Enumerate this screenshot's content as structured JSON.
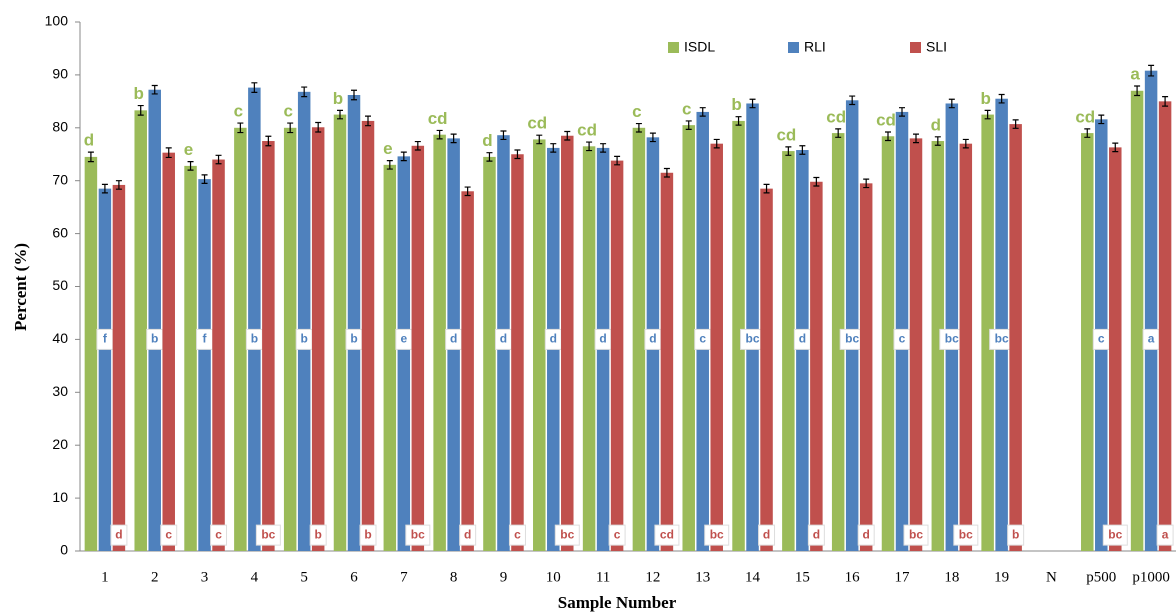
{
  "chart_data": {
    "type": "bar",
    "x_label": "Sample Number",
    "y_label": "Percent (%)",
    "categories": [
      "1",
      "2",
      "3",
      "4",
      "5",
      "6",
      "7",
      "8",
      "9",
      "10",
      "11",
      "12",
      "13",
      "14",
      "15",
      "16",
      "17",
      "18",
      "19",
      "N",
      "p500",
      "p1000"
    ],
    "ylim": [
      0,
      100
    ],
    "yticks": [
      0,
      10,
      20,
      30,
      40,
      50,
      60,
      70,
      80,
      90,
      100
    ],
    "grid": false,
    "legend": "top-right",
    "series": [
      {
        "name": "ISDL",
        "color": "#9bbb59",
        "values": [
          74.5,
          83.3,
          72.8,
          80,
          80,
          82.5,
          73,
          78.7,
          74.5,
          77.8,
          76.5,
          80,
          80.5,
          81.3,
          75.6,
          79,
          78.4,
          77.5,
          82.5,
          null,
          79,
          87
        ],
        "errors": [
          0.9,
          0.9,
          0.8,
          0.9,
          0.9,
          0.8,
          0.8,
          0.8,
          0.8,
          0.8,
          0.8,
          0.8,
          0.8,
          0.8,
          0.8,
          0.8,
          0.8,
          0.8,
          0.8,
          null,
          0.8,
          0.9
        ],
        "letters": [
          "d",
          "b",
          "e",
          "c",
          "c",
          "b",
          "e",
          "cd",
          "d",
          "cd",
          "cd",
          "c",
          "c",
          "b",
          "cd",
          "cd",
          "cd",
          "d",
          "b",
          null,
          "cd",
          "a"
        ]
      },
      {
        "name": "RLI",
        "color": "#4f81bd",
        "values": [
          68.5,
          87.2,
          70.3,
          87.6,
          86.8,
          86.2,
          74.6,
          78,
          78.6,
          76.2,
          76.2,
          78.2,
          83,
          84.6,
          75.8,
          85.2,
          83,
          84.6,
          85.5,
          null,
          81.6,
          90.8
        ],
        "errors": [
          0.8,
          0.8,
          0.8,
          0.9,
          0.9,
          0.9,
          0.8,
          0.8,
          0.8,
          0.8,
          0.8,
          0.8,
          0.8,
          0.8,
          0.8,
          0.8,
          0.8,
          0.8,
          0.8,
          null,
          0.8,
          1
        ],
        "letters": [
          "f",
          "b",
          "f",
          "b",
          "b",
          "b",
          "e",
          "d",
          "d",
          "d",
          "d",
          "d",
          "c",
          "bc",
          "d",
          "bc",
          "c",
          "bc",
          "bc",
          null,
          "c",
          "a"
        ]
      },
      {
        "name": "SLI",
        "color": "#c0504d",
        "values": [
          69.2,
          75.3,
          74,
          77.5,
          80.1,
          81.3,
          76.6,
          68,
          75,
          78.5,
          73.8,
          71.5,
          77,
          68.5,
          69.8,
          69.5,
          78,
          77,
          80.7,
          null,
          76.3,
          85
        ],
        "errors": [
          0.8,
          0.9,
          0.8,
          0.9,
          0.9,
          0.9,
          0.8,
          0.8,
          0.8,
          0.8,
          0.8,
          0.8,
          0.8,
          0.8,
          0.8,
          0.8,
          0.8,
          0.8,
          0.8,
          null,
          0.8,
          0.9
        ],
        "letters": [
          "d",
          "c",
          "c",
          "bc",
          "b",
          "b",
          "bc",
          "d",
          "c",
          "bc",
          "c",
          "cd",
          "bc",
          "d",
          "d",
          "d",
          "bc",
          "bc",
          "b",
          null,
          "bc",
          "a"
        ]
      }
    ]
  }
}
